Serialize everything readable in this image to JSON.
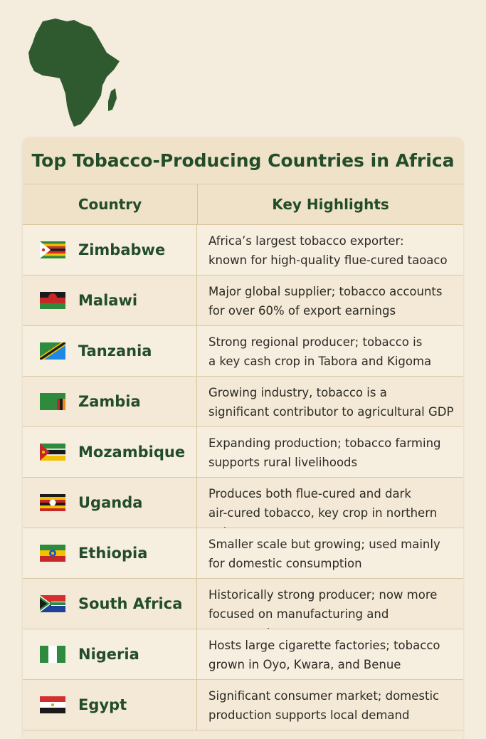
{
  "map_icon": "africa-continent-map",
  "colors": {
    "title": "#234d2a",
    "background": "#f4ecdc",
    "map": "#2f5a30"
  },
  "table": {
    "title": "Top Tobacco-Producing Countries in Africa",
    "headers": {
      "country": "Country",
      "highlights": "Key Highlights"
    },
    "rows": [
      {
        "flag": "zimbabwe-flag",
        "country": "Zimbabwe",
        "highlight": "Africa’s largest tobacco exporter:\nknown for high-quality flue-cured taoaco"
      },
      {
        "flag": "malawi-flag",
        "country": "Malawi",
        "highlight": "Major global supplier; tobacco accounts\nfor over 60% of export earnings"
      },
      {
        "flag": "tanzania-flag",
        "country": "Tanzania",
        "highlight": "Strong regional producer; tobacco is\na key cash crop in Tabora and Kigoma"
      },
      {
        "flag": "zambia-flag",
        "country": "Zambia",
        "highlight": "Growing industry, tobacco is a\nsignificant contributor to agricultural GDP"
      },
      {
        "flag": "mozambique-flag",
        "country": "Mozambique",
        "highlight": "Expanding production; tobacco farming\nsupports rural livelihoods"
      },
      {
        "flag": "uganda-flag",
        "country": "Uganda",
        "highlight": "Produces both flue-cured and dark\nair-cured tobacco, key crop in northern egions"
      },
      {
        "flag": "ethiopia-flag",
        "country": "Ethiopia",
        "highlight": "Smaller scale but growing; used mainly\nfor domestic consumption"
      },
      {
        "flag": "south-africa-flag",
        "country": "South Africa",
        "highlight": "Historically strong producer; now more\nfocused on manufacturing and consumption"
      },
      {
        "flag": "nigeria-flag",
        "country": "Nigeria",
        "highlight": "Hosts large cigarette factories; tobacco\ngrown in Oyo, Kwara, and Benue"
      },
      {
        "flag": "egypt-flag",
        "country": "Egypt",
        "highlight": "Significant consumer market; domestic\nproduction supports local demand"
      }
    ]
  }
}
